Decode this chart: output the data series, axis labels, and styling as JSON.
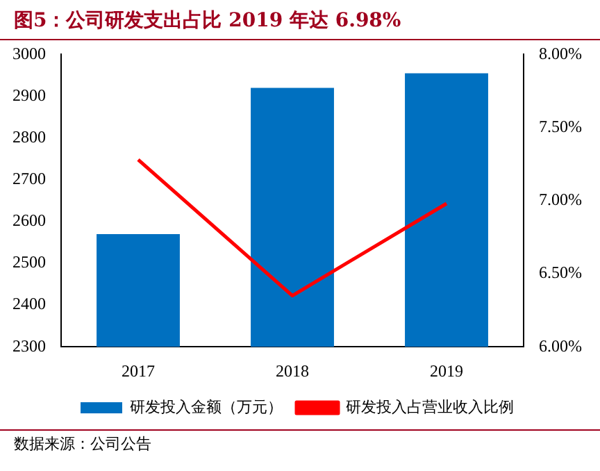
{
  "chart_data": {
    "type": "bar",
    "title": "图5：公司研发支出占比 2019 年达 6.98%",
    "categories": [
      "2017",
      "2018",
      "2019"
    ],
    "series": [
      {
        "name": "研发投入金额（万元）",
        "color": "#0070c0",
        "values": [
          2570,
          2920,
          2955
        ]
      },
      {
        "name": "研发投入占营业收入比例",
        "type": "line",
        "axis": "y2",
        "color": "#ff0000",
        "values": [
          7.28,
          6.35,
          6.98
        ]
      }
    ],
    "ylim": [
      2300,
      3000
    ],
    "yticks": [
      2300,
      2400,
      2500,
      2600,
      2700,
      2800,
      2900,
      3000
    ],
    "y2lim": [
      6,
      8
    ],
    "y2ticks": [
      {
        "value": 6,
        "label": "6.00%"
      },
      {
        "value": 6.5,
        "label": "6.50%"
      },
      {
        "value": 7,
        "label": "7.00%"
      },
      {
        "value": 7.5,
        "label": "7.50%"
      },
      {
        "value": 8,
        "label": "8.00%"
      }
    ],
    "grid": false,
    "legend": "bottom",
    "marker": "none",
    "line_style": "solid",
    "annotations": [
      "数据来源：公司公告"
    ]
  }
}
